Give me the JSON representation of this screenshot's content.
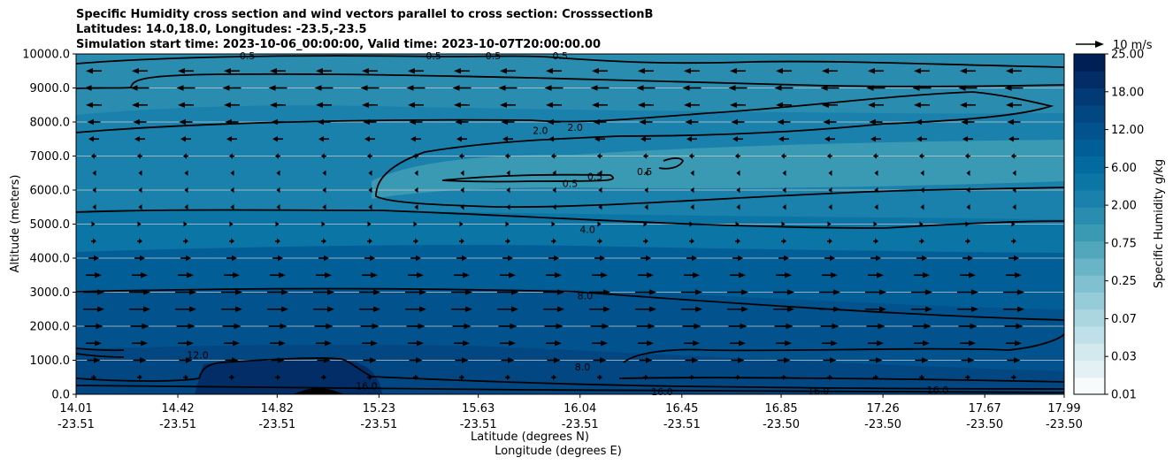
{
  "chart_data": {
    "type": "heatmap",
    "title_lines": [
      "Specific Humidity cross section and wind vectors parallel to cross section: CrosssectionB",
      "Latitudes: 14.0,18.0, Longitudes: -23.5,-23.5",
      "Simulation start time: 2023-10-06_00:00:00, Valid time: 2023-10-07T20:00:00.00"
    ],
    "ylabel": "Altitude (meters)",
    "xlabel_lat": "Latitude (degrees N)",
    "xlabel_lon": "Longitude (degrees E)",
    "ylim": [
      0,
      10000
    ],
    "xlim": [
      14.01,
      17.99
    ],
    "y_ticks": [
      "0.0",
      "1000.0",
      "2000.0",
      "3000.0",
      "4000.0",
      "5000.0",
      "6000.0",
      "7000.0",
      "8000.0",
      "9000.0",
      "10000.0"
    ],
    "x_ticks": [
      {
        "lat": "14.01",
        "lon": "-23.51"
      },
      {
        "lat": "14.42",
        "lon": "-23.51"
      },
      {
        "lat": "14.82",
        "lon": "-23.51"
      },
      {
        "lat": "15.23",
        "lon": "-23.51"
      },
      {
        "lat": "15.63",
        "lon": "-23.51"
      },
      {
        "lat": "16.04",
        "lon": "-23.51"
      },
      {
        "lat": "16.45",
        "lon": "-23.51"
      },
      {
        "lat": "16.85",
        "lon": "-23.50"
      },
      {
        "lat": "17.26",
        "lon": "-23.50"
      },
      {
        "lat": "17.67",
        "lon": "-23.50"
      },
      {
        "lat": "17.99",
        "lon": "-23.50"
      }
    ],
    "colorbar": {
      "label": "Specific Humidity g/kg",
      "ticks": [
        "0.01",
        "0.03",
        "0.07",
        "0.25",
        "0.75",
        "2.00",
        "6.00",
        "12.00",
        "18.00",
        "25.00"
      ],
      "levels": [
        0.01,
        0.02,
        0.03,
        0.05,
        0.07,
        0.1,
        0.25,
        0.5,
        0.75,
        1.0,
        2.0,
        4.0,
        6.0,
        8.0,
        12.0,
        16.0,
        18.0,
        20.0,
        25.0
      ],
      "colors": [
        "#f7fbfc",
        "#e4f1f4",
        "#d2e9ee",
        "#bfe0e8",
        "#abd6e0",
        "#96cbd8",
        "#80c0d0",
        "#69b4c7",
        "#52a7bd",
        "#3a9ab4",
        "#2a8db0",
        "#1a81ac",
        "#0b75a6",
        "#036a9f",
        "#025e97",
        "#02528d",
        "#024682",
        "#023a75",
        "#022d66",
        "#001f55"
      ]
    },
    "legend": {
      "label": "10 m/s",
      "placement": "top-right"
    },
    "altitude_levels_m": [
      500,
      1000,
      1500,
      2000,
      2500,
      3000,
      3500,
      4000,
      4500,
      5000,
      5500,
      6000,
      6500,
      7000,
      7500,
      8000,
      8500,
      9000,
      9500
    ],
    "wind_u_by_level_ms": [
      2,
      5,
      6,
      7,
      8,
      8,
      6,
      4,
      2,
      1,
      -1,
      -1,
      -1,
      -2,
      -4,
      -5,
      -6,
      -7,
      -6
    ],
    "contour_labels": [
      {
        "text": "0.5",
        "x": 14.7,
        "y": 9950
      },
      {
        "text": "0.5",
        "x": 15.45,
        "y": 9950
      },
      {
        "text": "0.5",
        "x": 15.69,
        "y": 9950
      },
      {
        "text": "0.5",
        "x": 15.96,
        "y": 9950
      },
      {
        "text": "2.0",
        "x": 16.02,
        "y": 7850
      },
      {
        "text": "2.0",
        "x": 15.88,
        "y": 7750
      },
      {
        "text": "0.5",
        "x": 16.1,
        "y": 6400
      },
      {
        "text": "0.5",
        "x": 16.3,
        "y": 6550
      },
      {
        "text": "0.5",
        "x": 16.0,
        "y": 6200
      },
      {
        "text": "4.0",
        "x": 16.07,
        "y": 4850
      },
      {
        "text": "8.0",
        "x": 16.06,
        "y": 2900
      },
      {
        "text": "12.0",
        "x": 14.5,
        "y": 1150
      },
      {
        "text": "8.0",
        "x": 16.05,
        "y": 800
      },
      {
        "text": "16.0",
        "x": 15.18,
        "y": 250
      },
      {
        "text": "16.0",
        "x": 16.37,
        "y": 80
      },
      {
        "text": "16.0",
        "x": 17.0,
        "y": 100
      },
      {
        "text": "16.0",
        "x": 17.48,
        "y": 130
      }
    ]
  }
}
